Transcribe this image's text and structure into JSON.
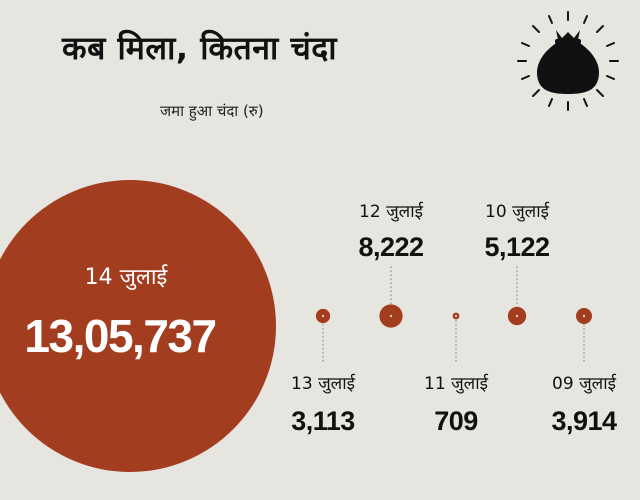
{
  "title": "कब मिला, कितना चंदा",
  "subtitle": "जमा हुआ चंदा (रु)",
  "icon": "money-bag-icon",
  "colors": {
    "bubble": "#a33d1f",
    "background": "#e6e5e0",
    "text": "#111111"
  },
  "chart_data": {
    "type": "bubble",
    "title": "कब मिला, कितना चंदा",
    "subtitle": "जमा हुआ चंदा (रु)",
    "points": [
      {
        "date": "14 जुलाई",
        "value": 1305737,
        "value_label": "13,05,737",
        "highlight": true
      },
      {
        "date": "13 जुलाई",
        "value": 3113,
        "value_label": "3,113",
        "label_position": "below"
      },
      {
        "date": "12 जुलाई",
        "value": 8222,
        "value_label": "8,222",
        "label_position": "above"
      },
      {
        "date": "11 जुलाई",
        "value": 709,
        "value_label": "709",
        "label_position": "below"
      },
      {
        "date": "10 जुलाई",
        "value": 5122,
        "value_label": "5,122",
        "label_position": "above"
      },
      {
        "date": "09 जुलाई",
        "value": 3914,
        "value_label": "3,914",
        "label_position": "below"
      }
    ]
  }
}
